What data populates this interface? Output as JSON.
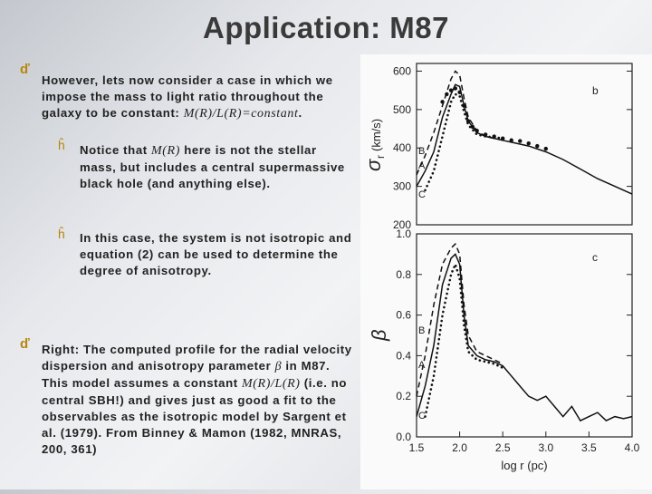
{
  "slide": {
    "title": "Application: M87",
    "bullet1": {
      "text": "However, lets now consider a case in which we impose the mass to light ratio throughout the galaxy to be constant: ",
      "math": "M(R)/L(R)=constant",
      "end": "."
    },
    "sub1": {
      "pre": "Notice that ",
      "math": "M(R)",
      "post": " here is not the stellar mass, but includes a central supermassive black hole (and anything else)."
    },
    "sub2": {
      "text": "In this case, the system is not isotropic and equation (2) can be used to determine the degree of anisotropy."
    },
    "bullet2": {
      "pre": "Right: The computed profile for the radial velocity dispersion and anisotropy parameter ",
      "beta": "β",
      "mid": " in M87. This model assumes a constant ",
      "math": "M(R)/L(R)",
      "post": " (i.e. no central SBH!) and gives just as good a fit to the observables as the isotropic model by Sargent et al. (1979). From Binney & Mamon (1982, MNRAS, 200, 361)"
    },
    "marker_main": "ď",
    "marker_sub": "ĥ"
  },
  "chart_data": [
    {
      "type": "line",
      "panel": "b",
      "ylabel": "σr (km/s)",
      "ylabel_sym": "σ",
      "ylabel_sub": "r",
      "ylabel_unit": "(km/s)",
      "ylim": [
        200,
        620
      ],
      "xlim": [
        1.5,
        4.0
      ],
      "yticks": [
        200,
        300,
        400,
        500,
        600
      ],
      "curve_labels": [
        "B",
        "A",
        "C"
      ],
      "series": [
        {
          "name": "A",
          "style": "solid",
          "points": [
            [
              1.5,
              300
            ],
            [
              1.6,
              340
            ],
            [
              1.7,
              390
            ],
            [
              1.8,
              480
            ],
            [
              1.9,
              540
            ],
            [
              1.95,
              565
            ],
            [
              2.0,
              560
            ],
            [
              2.05,
              510
            ],
            [
              2.1,
              470
            ],
            [
              2.2,
              440
            ],
            [
              2.3,
              430
            ],
            [
              2.4,
              425
            ],
            [
              2.5,
              420
            ],
            [
              2.6,
              415
            ],
            [
              2.8,
              405
            ],
            [
              3.0,
              390
            ],
            [
              3.2,
              370
            ],
            [
              3.4,
              345
            ],
            [
              3.6,
              320
            ],
            [
              3.8,
              300
            ],
            [
              4.0,
              280
            ]
          ]
        },
        {
          "name": "B",
          "style": "dashed",
          "points": [
            [
              1.5,
              330
            ],
            [
              1.6,
              380
            ],
            [
              1.7,
              440
            ],
            [
              1.8,
              510
            ],
            [
              1.9,
              580
            ],
            [
              1.95,
              600
            ],
            [
              2.0,
              590
            ],
            [
              2.05,
              530
            ],
            [
              2.1,
              480
            ],
            [
              2.2,
              445
            ],
            [
              2.3,
              430
            ],
            [
              2.4,
              425
            ],
            [
              2.5,
              420
            ]
          ]
        },
        {
          "name": "C",
          "style": "dotted",
          "points": [
            [
              1.6,
              290
            ],
            [
              1.7,
              340
            ],
            [
              1.8,
              430
            ],
            [
              1.9,
              520
            ],
            [
              1.95,
              540
            ],
            [
              2.0,
              535
            ],
            [
              2.05,
              495
            ],
            [
              2.1,
              460
            ],
            [
              2.2,
              435
            ],
            [
              2.3,
              430
            ],
            [
              2.4,
              428
            ],
            [
              2.5,
              425
            ]
          ]
        },
        {
          "name": "data",
          "style": "points",
          "points": [
            [
              1.8,
              520
            ],
            [
              1.85,
              540
            ],
            [
              1.9,
              550
            ],
            [
              1.95,
              555
            ],
            [
              2.0,
              545
            ],
            [
              2.05,
              510
            ],
            [
              2.1,
              470
            ],
            [
              2.15,
              455
            ],
            [
              2.2,
              445
            ],
            [
              2.3,
              435
            ],
            [
              2.4,
              430
            ],
            [
              2.5,
              425
            ],
            [
              2.6,
              420
            ],
            [
              2.7,
              418
            ],
            [
              2.8,
              412
            ],
            [
              2.9,
              405
            ],
            [
              3.0,
              398
            ]
          ]
        }
      ]
    },
    {
      "type": "line",
      "panel": "c",
      "ylabel": "β",
      "xlabel": "log r (pc)",
      "ylim": [
        0.0,
        1.0
      ],
      "xlim": [
        1.5,
        4.0
      ],
      "yticks": [
        0.0,
        0.2,
        0.4,
        0.6,
        0.8,
        1.0
      ],
      "ytick_labels": [
        "0.0",
        "0.2",
        "0.4",
        "0.6",
        "0.8",
        "1.0"
      ],
      "xticks": [
        1.5,
        2.0,
        2.5,
        3.0,
        3.5,
        4.0
      ],
      "xtick_labels": [
        "1.5",
        "2.0",
        "2.5",
        "3.0",
        "3.5",
        "4.0"
      ],
      "curve_labels": [
        "B",
        "A",
        "C"
      ],
      "series": [
        {
          "name": "A",
          "style": "solid",
          "points": [
            [
              1.5,
              0.1
            ],
            [
              1.6,
              0.25
            ],
            [
              1.7,
              0.45
            ],
            [
              1.8,
              0.75
            ],
            [
              1.9,
              0.88
            ],
            [
              1.95,
              0.9
            ],
            [
              2.0,
              0.85
            ],
            [
              2.05,
              0.6
            ],
            [
              2.1,
              0.45
            ],
            [
              2.2,
              0.4
            ],
            [
              2.3,
              0.38
            ],
            [
              2.4,
              0.37
            ],
            [
              2.5,
              0.35
            ],
            [
              2.6,
              0.3
            ],
            [
              2.7,
              0.25
            ],
            [
              2.8,
              0.2
            ],
            [
              2.9,
              0.18
            ],
            [
              3.0,
              0.2
            ],
            [
              3.1,
              0.15
            ],
            [
              3.2,
              0.1
            ],
            [
              3.3,
              0.15
            ],
            [
              3.4,
              0.08
            ],
            [
              3.5,
              0.1
            ],
            [
              3.6,
              0.12
            ],
            [
              3.7,
              0.08
            ],
            [
              3.8,
              0.1
            ],
            [
              3.9,
              0.09
            ],
            [
              4.0,
              0.1
            ]
          ]
        },
        {
          "name": "B",
          "style": "dashed",
          "points": [
            [
              1.5,
              0.2
            ],
            [
              1.6,
              0.4
            ],
            [
              1.7,
              0.65
            ],
            [
              1.8,
              0.85
            ],
            [
              1.9,
              0.93
            ],
            [
              1.95,
              0.95
            ],
            [
              2.0,
              0.9
            ],
            [
              2.05,
              0.65
            ],
            [
              2.1,
              0.5
            ],
            [
              2.2,
              0.42
            ],
            [
              2.3,
              0.4
            ],
            [
              2.4,
              0.38
            ],
            [
              2.5,
              0.36
            ]
          ]
        },
        {
          "name": "C",
          "style": "dotted",
          "points": [
            [
              1.6,
              0.1
            ],
            [
              1.7,
              0.3
            ],
            [
              1.8,
              0.6
            ],
            [
              1.9,
              0.8
            ],
            [
              1.95,
              0.85
            ],
            [
              2.0,
              0.78
            ],
            [
              2.05,
              0.55
            ],
            [
              2.1,
              0.42
            ],
            [
              2.2,
              0.38
            ],
            [
              2.3,
              0.37
            ],
            [
              2.4,
              0.36
            ],
            [
              2.5,
              0.34
            ]
          ]
        }
      ]
    }
  ]
}
